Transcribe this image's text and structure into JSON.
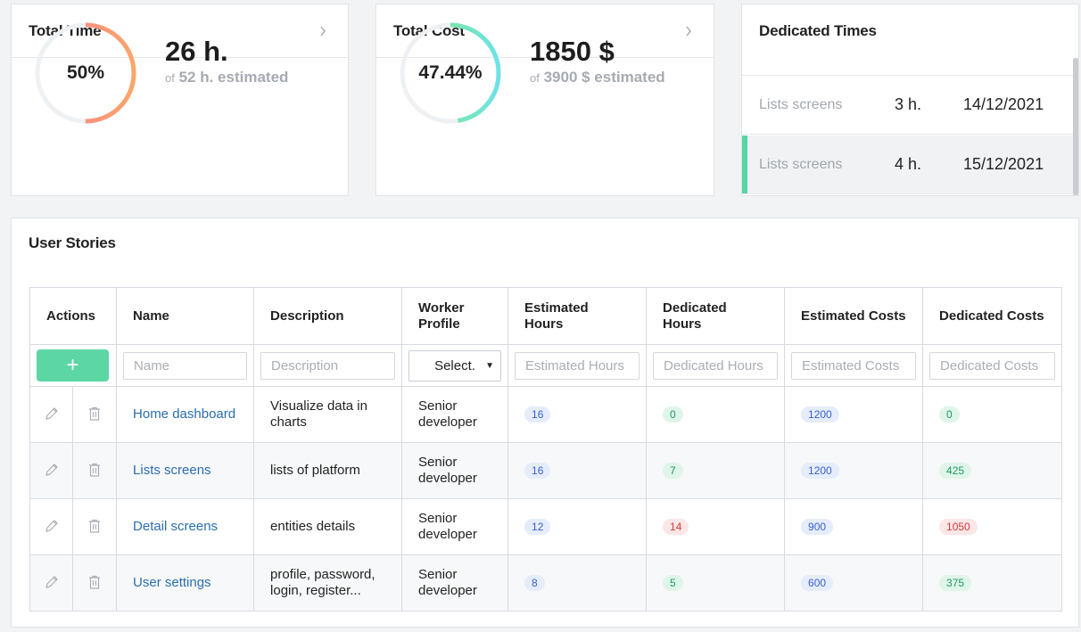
{
  "total_time": {
    "title": "Total Time",
    "percent_label": "50%",
    "percent": 50,
    "value": "26 h.",
    "of": "of",
    "estimated": "52 h. estimated"
  },
  "total_cost": {
    "title": "Total Cost",
    "percent_label": "47.44%",
    "percent": 47.44,
    "value": "1850 $",
    "of": "of",
    "estimated": "3900 $ estimated"
  },
  "dedicated_times": {
    "title": "Dedicated Times",
    "rows": [
      {
        "name": "Lists screens",
        "hours": "3 h.",
        "date": "14/12/2021"
      },
      {
        "name": "Lists screens",
        "hours": "4 h.",
        "date": "15/12/2021"
      }
    ]
  },
  "user_stories": {
    "title": "User Stories",
    "columns": {
      "actions": "Actions",
      "name": "Name",
      "description": "Description",
      "worker_profile_1": "Worker",
      "worker_profile_2": "Profile",
      "est_hours_1": "Estimated",
      "est_hours_2": "Hours",
      "ded_hours_1": "Dedicated",
      "ded_hours_2": "Hours",
      "est_costs": "Estimated Costs",
      "ded_costs": "Dedicated Costs"
    },
    "filters": {
      "add_label": "+",
      "name": "Name",
      "description": "Description",
      "worker_profile": "Select.",
      "est_hours": "Estimated Hours",
      "ded_hours": "Dedicated Hours",
      "est_costs": "Estimated Costs",
      "ded_costs": "Dedicated Costs"
    },
    "rows": [
      {
        "name": "Home dashboard",
        "desc_1": "Visualize data in",
        "desc_2": "charts",
        "profile_1": "Senior",
        "profile_2": "developer",
        "est_hours": "16",
        "ded_hours": "0",
        "est_costs": "1200",
        "ded_costs": "0",
        "status": "ok"
      },
      {
        "name": "Lists screens",
        "desc_1": "lists of platform",
        "desc_2": "",
        "profile_1": "Senior",
        "profile_2": "developer",
        "est_hours": "16",
        "ded_hours": "7",
        "est_costs": "1200",
        "ded_costs": "425",
        "status": "ok"
      },
      {
        "name": "Detail screens",
        "desc_1": "entities details",
        "desc_2": "",
        "profile_1": "Senior",
        "profile_2": "developer",
        "est_hours": "12",
        "ded_hours": "14",
        "est_costs": "900",
        "ded_costs": "1050",
        "status": "over"
      },
      {
        "name": "User settings",
        "desc_1": "profile, password,",
        "desc_2": "login, register...",
        "profile_1": "Senior",
        "profile_2": "developer",
        "est_hours": "8",
        "ded_hours": "5",
        "est_costs": "600",
        "ded_costs": "375",
        "status": "ok"
      }
    ]
  },
  "colors": {
    "accent_green": "#5cd6a3",
    "time_ring_start": "#fd7e94",
    "time_ring_end": "#fba66a",
    "cost_ring_start": "#83ea6f",
    "cost_ring_end": "#6ee2e8",
    "link": "#2a6db0"
  },
  "icons": {
    "card_link": "chevron-right-icon",
    "edit": "pencil-icon",
    "delete": "trash-icon"
  }
}
